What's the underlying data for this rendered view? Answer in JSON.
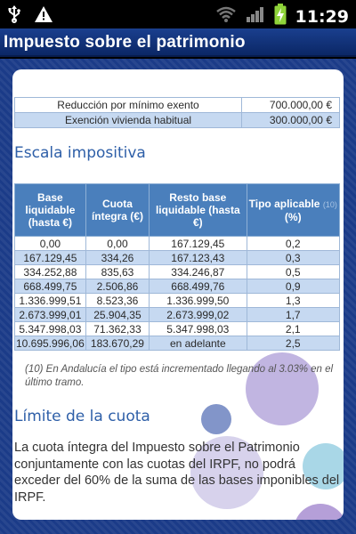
{
  "status_bar": {
    "time": "11:29",
    "icons": [
      "usb-icon",
      "warning-icon",
      "wifi-icon",
      "signal-icon",
      "battery-charging-icon"
    ]
  },
  "title_bar": {
    "title": "Impuesto sobre el patrimonio"
  },
  "exemptions": [
    {
      "label": "Reducción por mínimo exento",
      "value": "700.000,00 €"
    },
    {
      "label": "Exención vivienda habitual",
      "value": "300.000,00 €"
    }
  ],
  "escala": {
    "title": "Escala impositiva",
    "headers": [
      "Base liquidable (hasta €)",
      "Cuota íntegra (€)",
      "Resto base liquidable (hasta €)",
      "Tipo aplicable"
    ],
    "header_note": "(10)",
    "header_unit": "(%)",
    "rows": [
      [
        "0,00",
        "0,00",
        "167.129,45",
        "0,2"
      ],
      [
        "167.129,45",
        "334,26",
        "167.123,43",
        "0,3"
      ],
      [
        "334.252,88",
        "835,63",
        "334.246,87",
        "0,5"
      ],
      [
        "668.499,75",
        "2.506,86",
        "668.499,76",
        "0,9"
      ],
      [
        "1.336.999,51",
        "8.523,36",
        "1.336.999,50",
        "1,3"
      ],
      [
        "2.673.999,01",
        "25.904,35",
        "2.673.999,02",
        "1,7"
      ],
      [
        "5.347.998,03",
        "71.362,33",
        "5.347.998,03",
        "2,1"
      ],
      [
        "10.695.996,06",
        "183.670,29",
        "en adelante",
        "2,5"
      ]
    ]
  },
  "footnote": "(10) En Andalucía el tipo está incrementado llegando al 3.03% en el último tramo.",
  "limite": {
    "title": "Límite de la cuota",
    "text": "La cuota íntegra del Impuesto sobre el Patrimonio conjuntamente con las cuotas del IRPF, no podrá exceder del 60% de la suma de las bases imponibles del IRPF."
  },
  "colors": {
    "title_bar": "#0f2f73",
    "background": "#1b3b88",
    "header_blue": "#4a7fbc",
    "row_alt": "#c6d9f1",
    "section_title": "#2e5fa8"
  }
}
